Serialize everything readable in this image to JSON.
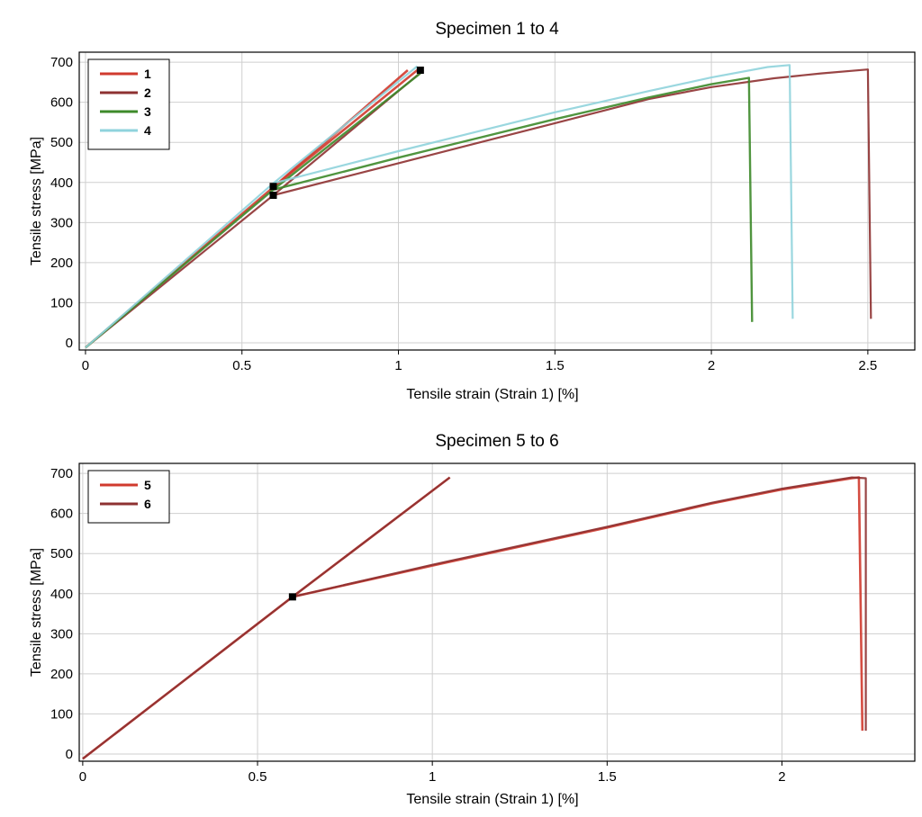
{
  "chart_data": [
    {
      "type": "line",
      "title": "Specimen 1 to 4",
      "xlabel": "Tensile strain (Strain 1) [%]",
      "ylabel": "Tensile stress [MPa]",
      "xlim": [
        -0.02,
        2.65
      ],
      "ylim": [
        -18,
        725
      ],
      "xticks": [
        0,
        0.5,
        1,
        1.5,
        2,
        2.5
      ],
      "xtick_labels": [
        "0",
        "0.5",
        "1",
        "1.5",
        "2",
        "2.5"
      ],
      "yticks": [
        0,
        100,
        200,
        300,
        400,
        500,
        600,
        700
      ],
      "ytick_labels": [
        "0",
        "100",
        "200",
        "300",
        "400",
        "500",
        "600",
        "700"
      ],
      "grid": true,
      "legend_position": "top-left",
      "series": [
        {
          "name": "1",
          "color": "#d03a2e",
          "width": 2.6,
          "segments": [
            [
              [
                0,
                -12
              ],
              [
                0.6,
                388
              ],
              [
                1.03,
                680
              ]
            ],
            [
              [
                0.6,
                388
              ],
              [
                1.06,
                680
              ]
            ]
          ]
        },
        {
          "name": "2",
          "color": "#8e3131",
          "width": 2.2,
          "segments": [
            [
              [
                0,
                -12
              ],
              [
                0.6,
                368
              ],
              [
                1.08,
                680
              ]
            ],
            [
              [
                0.6,
                368
              ],
              [
                1.0,
                448
              ],
              [
                1.5,
                548
              ],
              [
                1.8,
                608
              ],
              [
                2.0,
                638
              ],
              [
                2.2,
                660
              ],
              [
                2.35,
                672
              ],
              [
                2.5,
                682
              ],
              [
                2.51,
                60
              ]
            ]
          ]
        },
        {
          "name": "3",
          "color": "#3d8a2a",
          "width": 2.4,
          "segments": [
            [
              [
                0,
                -12
              ],
              [
                0.6,
                382
              ],
              [
                1.07,
                672
              ]
            ],
            [
              [
                0.6,
                382
              ],
              [
                1.0,
                462
              ],
              [
                1.5,
                558
              ],
              [
                1.8,
                612
              ],
              [
                2.0,
                645
              ],
              [
                2.12,
                661
              ],
              [
                2.13,
                52
              ]
            ]
          ]
        },
        {
          "name": "4",
          "color": "#8fd3dc",
          "width": 2.2,
          "segments": [
            [
              [
                0,
                -12
              ],
              [
                0.6,
                398
              ],
              [
                1.06,
                690
              ]
            ],
            [
              [
                0.6,
                398
              ],
              [
                1.0,
                478
              ],
              [
                1.5,
                575
              ],
              [
                1.8,
                628
              ],
              [
                2.0,
                662
              ],
              [
                2.18,
                688
              ],
              [
                2.25,
                693
              ],
              [
                2.26,
                60
              ]
            ]
          ]
        }
      ],
      "markers": [
        [
          0.6,
          390
        ],
        [
          0.6,
          368
        ],
        [
          1.07,
          680
        ]
      ]
    },
    {
      "type": "line",
      "title": "Specimen 5 to 6",
      "xlabel": "Tensile strain (Strain 1) [%]",
      "ylabel": "Tensile stress [MPa]",
      "xlim": [
        -0.01,
        2.38
      ],
      "ylim": [
        -18,
        725
      ],
      "xticks": [
        0,
        0.5,
        1,
        1.5,
        2
      ],
      "xtick_labels": [
        "0",
        "0.5",
        "1",
        "1.5",
        "2"
      ],
      "yticks": [
        0,
        100,
        200,
        300,
        400,
        500,
        600,
        700
      ],
      "ytick_labels": [
        "0",
        "100",
        "200",
        "300",
        "400",
        "500",
        "600",
        "700"
      ],
      "grid": true,
      "legend_position": "top-left",
      "series": [
        {
          "name": "5",
          "color": "#d03a2e",
          "width": 2.6,
          "segments": [
            [
              [
                0,
                -12
              ],
              [
                0.6,
                392
              ],
              [
                1.05,
                690
              ]
            ],
            [
              [
                0.6,
                392
              ],
              [
                1.0,
                470
              ],
              [
                1.5,
                565
              ],
              [
                1.8,
                625
              ],
              [
                2.0,
                660
              ],
              [
                2.2,
                688
              ],
              [
                2.22,
                690
              ],
              [
                2.23,
                58
              ]
            ]
          ]
        },
        {
          "name": "6",
          "color": "#8e3131",
          "width": 2.2,
          "segments": [
            [
              [
                0,
                -12
              ],
              [
                0.6,
                392
              ],
              [
                1.05,
                690
              ]
            ],
            [
              [
                0.6,
                392
              ],
              [
                1.0,
                472
              ],
              [
                1.5,
                567
              ],
              [
                1.8,
                627
              ],
              [
                2.0,
                662
              ],
              [
                2.2,
                690
              ],
              [
                2.24,
                688
              ],
              [
                2.24,
                58
              ]
            ]
          ]
        }
      ],
      "markers": [
        [
          0.6,
          392
        ]
      ]
    }
  ]
}
